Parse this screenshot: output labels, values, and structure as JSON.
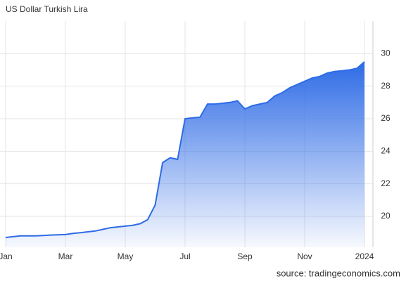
{
  "chart_data": {
    "type": "area",
    "title": "US Dollar Turkish Lira",
    "source": "source: tradingeconomics.com",
    "categories": [
      "Jan",
      null,
      null,
      null,
      null,
      null,
      null,
      null,
      "Mar",
      null,
      null,
      null,
      null,
      null,
      null,
      null,
      "May",
      null,
      null,
      null,
      null,
      null,
      null,
      null,
      "Jul",
      null,
      null,
      null,
      null,
      null,
      null,
      null,
      "Sep",
      null,
      null,
      null,
      null,
      null,
      null,
      null,
      "Nov",
      null,
      null,
      null,
      null,
      null,
      null,
      null,
      "2024"
    ],
    "values": [
      18.7,
      18.75,
      18.8,
      18.8,
      18.8,
      18.82,
      18.85,
      18.87,
      18.88,
      18.95,
      19.0,
      19.05,
      19.1,
      19.2,
      19.3,
      19.35,
      19.4,
      19.45,
      19.55,
      19.8,
      20.7,
      23.3,
      23.6,
      23.5,
      26.0,
      26.05,
      26.1,
      26.9,
      26.9,
      26.95,
      27.0,
      27.1,
      26.6,
      26.8,
      26.9,
      27.0,
      27.4,
      27.6,
      27.9,
      28.1,
      28.3,
      28.5,
      28.6,
      28.8,
      28.9,
      28.95,
      29.0,
      29.1,
      29.5
    ],
    "color": "#2e6be6",
    "ylim": [
      18.1,
      32
    ],
    "yticks": [
      20,
      22,
      24,
      26,
      28,
      30
    ],
    "grid": true
  }
}
